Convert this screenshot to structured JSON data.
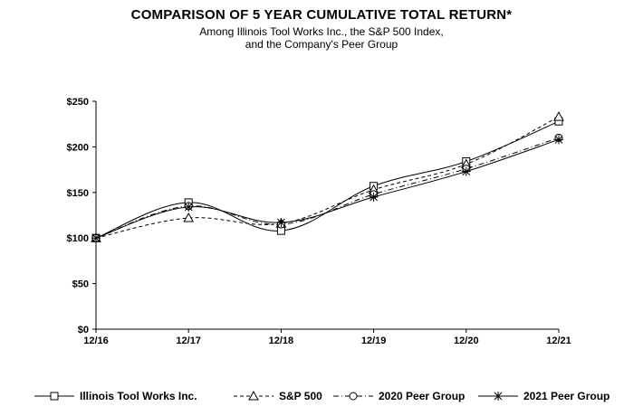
{
  "chart_data": {
    "type": "line",
    "title": "COMPARISON OF 5 YEAR CUMULATIVE TOTAL RETURN*",
    "subtitle_lines": [
      "Among Illinois Tool Works Inc., the S&P 500 Index,",
      "and the Company's Peer Group"
    ],
    "categories": [
      "12/16",
      "12/17",
      "12/18",
      "12/19",
      "12/20",
      "12/21"
    ],
    "ylim": [
      0,
      250
    ],
    "y_ticks": [
      0,
      50,
      100,
      150,
      200,
      250
    ],
    "y_tick_labels": [
      "$0",
      "$50",
      "$100",
      "$150",
      "$200",
      "$250"
    ],
    "grid": false,
    "legend_position": "bottom",
    "series": [
      {
        "name": "Illinois Tool Works Inc.",
        "marker": "square",
        "dash": "solid",
        "values": [
          100,
          139,
          108,
          157,
          184,
          228
        ]
      },
      {
        "name": "S&P 500",
        "marker": "triangle",
        "dash": "dashed",
        "values": [
          100,
          122,
          116,
          153,
          181,
          233
        ]
      },
      {
        "name": "2020 Peer Group",
        "marker": "circle",
        "dash": "dash-dot",
        "values": [
          100,
          135,
          115,
          148,
          176,
          210
        ]
      },
      {
        "name": "2021 Peer Group",
        "marker": "star",
        "dash": "solid",
        "values": [
          100,
          134,
          117,
          145,
          173,
          208
        ]
      }
    ]
  }
}
